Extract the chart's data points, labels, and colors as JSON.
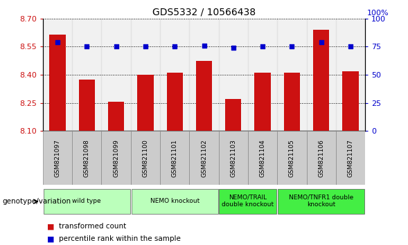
{
  "title": "GDS5332 / 10566438",
  "samples": [
    "GSM821097",
    "GSM821098",
    "GSM821099",
    "GSM821100",
    "GSM821101",
    "GSM821102",
    "GSM821103",
    "GSM821104",
    "GSM821105",
    "GSM821106",
    "GSM821107"
  ],
  "bar_values": [
    8.615,
    8.375,
    8.255,
    8.4,
    8.41,
    8.475,
    8.27,
    8.41,
    8.41,
    8.64,
    8.42
  ],
  "dot_values": [
    79,
    75,
    75,
    75,
    75,
    76,
    74,
    75,
    75,
    79,
    75
  ],
  "ylim_left": [
    8.1,
    8.7
  ],
  "ylim_right": [
    0,
    100
  ],
  "yticks_left": [
    8.1,
    8.25,
    8.4,
    8.55,
    8.7
  ],
  "yticks_right": [
    0,
    25,
    50,
    75,
    100
  ],
  "bar_color": "#cc1111",
  "dot_color": "#0000cc",
  "bar_width": 0.55,
  "groups": [
    {
      "label": "wild type",
      "start": 0,
      "end": 3,
      "color": "#bbffbb"
    },
    {
      "label": "NEMO knockout",
      "start": 3,
      "end": 6,
      "color": "#bbffbb"
    },
    {
      "label": "NEMO/TRAIL\ndouble knockout",
      "start": 6,
      "end": 8,
      "color": "#44ee44"
    },
    {
      "label": "NEMO/TNFR1 double\nknockout",
      "start": 8,
      "end": 11,
      "color": "#44ee44"
    }
  ],
  "legend_bar_label": "transformed count",
  "legend_dot_label": "percentile rank within the sample",
  "genotype_label": "genotype/variation",
  "tick_color_left": "#cc1111",
  "tick_color_right": "#0000cc",
  "sample_box_color": "#cccccc",
  "sample_box_edge": "#888888"
}
